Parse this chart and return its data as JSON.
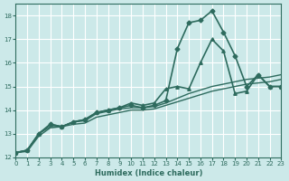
{
  "xlabel": "Humidex (Indice chaleur)",
  "ylabel": "",
  "bg_color": "#cce9e9",
  "grid_color": "#ffffff",
  "line_color": "#2e6b5e",
  "xlim": [
    0,
    23
  ],
  "ylim": [
    12,
    18.5
  ],
  "yticks": [
    12,
    13,
    14,
    15,
    16,
    17,
    18
  ],
  "xticks": [
    0,
    1,
    2,
    3,
    4,
    5,
    6,
    7,
    8,
    9,
    10,
    11,
    12,
    13,
    14,
    15,
    16,
    17,
    18,
    19,
    20,
    21,
    22,
    23
  ],
  "series": [
    {
      "x": [
        0,
        1,
        2,
        3,
        4,
        5,
        6,
        7,
        8,
        9,
        10,
        11,
        12,
        13,
        14,
        15,
        16,
        17,
        18,
        19,
        20,
        21,
        22,
        23
      ],
      "y": [
        12.2,
        12.3,
        13.0,
        13.4,
        13.3,
        13.5,
        13.6,
        13.9,
        14.0,
        14.1,
        14.2,
        14.1,
        14.2,
        14.4,
        16.6,
        17.7,
        17.8,
        18.2,
        17.3,
        16.3,
        15.0,
        15.5,
        15.0,
        15.0
      ],
      "marker": "D",
      "markersize": 2.5,
      "linewidth": 1.2
    },
    {
      "x": [
        0,
        1,
        2,
        3,
        4,
        5,
        6,
        7,
        8,
        9,
        10,
        11,
        12,
        13,
        14,
        15,
        16,
        17,
        18,
        19,
        20,
        21,
        22,
        23
      ],
      "y": [
        12.2,
        12.3,
        13.0,
        13.4,
        13.3,
        13.5,
        13.6,
        13.9,
        14.0,
        14.1,
        14.3,
        14.2,
        14.3,
        14.9,
        15.0,
        14.9,
        16.0,
        17.0,
        16.5,
        14.7,
        14.8,
        15.5,
        15.0,
        15.0
      ],
      "marker": "^",
      "markersize": 2.5,
      "linewidth": 1.2
    },
    {
      "x": [
        0,
        1,
        2,
        3,
        4,
        5,
        6,
        7,
        8,
        9,
        10,
        11,
        12,
        13,
        14,
        15,
        16,
        17,
        18,
        19,
        20,
        21,
        22,
        23
      ],
      "y": [
        12.2,
        12.3,
        13.0,
        13.3,
        13.3,
        13.5,
        13.55,
        13.85,
        13.95,
        14.05,
        14.1,
        14.1,
        14.15,
        14.3,
        14.5,
        14.7,
        14.85,
        15.0,
        15.1,
        15.2,
        15.3,
        15.35,
        15.4,
        15.5
      ],
      "marker": null,
      "markersize": 0,
      "linewidth": 1.0
    },
    {
      "x": [
        0,
        1,
        2,
        3,
        4,
        5,
        6,
        7,
        8,
        9,
        10,
        11,
        12,
        13,
        14,
        15,
        16,
        17,
        18,
        19,
        20,
        21,
        22,
        23
      ],
      "y": [
        12.2,
        12.25,
        12.9,
        13.25,
        13.3,
        13.4,
        13.45,
        13.7,
        13.8,
        13.9,
        14.0,
        14.0,
        14.05,
        14.2,
        14.35,
        14.5,
        14.65,
        14.8,
        14.9,
        15.0,
        15.1,
        15.15,
        15.2,
        15.3
      ],
      "marker": null,
      "markersize": 0,
      "linewidth": 1.0
    }
  ]
}
